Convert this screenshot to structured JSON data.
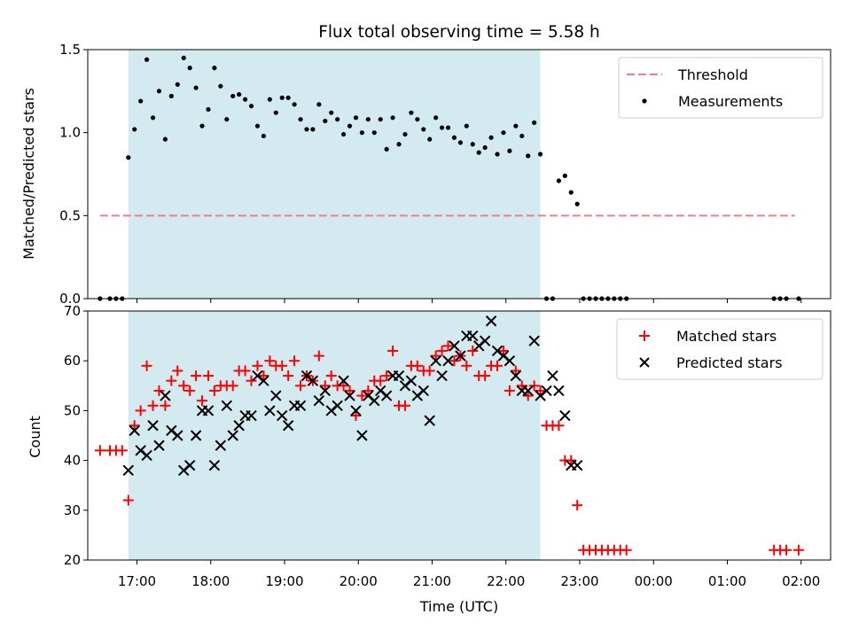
{
  "chart_data": {
    "title": "Flux total observing time = 5.58 h",
    "observing_window": {
      "start": "16:53",
      "end": "22:28",
      "color": "#d3eaf0"
    },
    "xlabel": "Time (UTC)",
    "xlim": [
      "16:20",
      "02:24"
    ],
    "x_tick_labels": [
      "17:00",
      "18:00",
      "19:00",
      "20:00",
      "21:00",
      "22:00",
      "23:00",
      "00:00",
      "01:00",
      "02:00"
    ],
    "panels": [
      {
        "type": "scatter",
        "ylabel": "Matched/Predicted stars",
        "ylim": [
          0,
          1.5
        ],
        "y_tick_labels": [
          "0.0",
          "0.5",
          "1.0",
          "1.5"
        ],
        "legend_position": "top-right",
        "threshold": {
          "name": "Threshold",
          "value": 0.5,
          "x_range": [
            "16:30",
            "01:55"
          ],
          "color": "#f08080",
          "style": "dashed"
        },
        "series": [
          {
            "name": "Measurements",
            "color": "#000000",
            "marker": "dot",
            "x": [
              "16:30",
              "16:38",
              "16:43",
              "16:48",
              "16:53",
              "16:58",
              "17:03",
              "17:08",
              "17:13",
              "17:18",
              "17:23",
              "17:28",
              "17:33",
              "17:38",
              "17:43",
              "17:48",
              "17:53",
              "17:58",
              "18:03",
              "18:08",
              "18:13",
              "18:18",
              "18:23",
              "18:28",
              "18:33",
              "18:38",
              "18:43",
              "18:48",
              "18:53",
              "18:58",
              "19:03",
              "19:08",
              "19:13",
              "19:18",
              "19:23",
              "19:28",
              "19:33",
              "19:38",
              "19:43",
              "19:48",
              "19:53",
              "19:58",
              "20:03",
              "20:08",
              "20:13",
              "20:18",
              "20:23",
              "20:28",
              "20:33",
              "20:38",
              "20:43",
              "20:48",
              "20:53",
              "20:58",
              "21:03",
              "21:08",
              "21:13",
              "21:18",
              "21:23",
              "21:28",
              "21:33",
              "21:38",
              "21:43",
              "21:48",
              "21:53",
              "21:58",
              "22:03",
              "22:08",
              "22:13",
              "22:18",
              "22:23",
              "22:28",
              "22:33",
              "22:38",
              "22:43",
              "22:48",
              "22:53",
              "22:58",
              "23:03",
              "23:08",
              "23:13",
              "23:18",
              "23:23",
              "23:28",
              "23:33",
              "23:38",
              "01:38",
              "01:43",
              "01:48",
              "01:58"
            ],
            "y": [
              0,
              0,
              0,
              0,
              0.85,
              1.02,
              1.19,
              1.44,
              1.09,
              1.25,
              0.96,
              1.22,
              1.29,
              1.45,
              1.39,
              1.27,
              1.04,
              1.14,
              1.39,
              1.28,
              1.08,
              1.22,
              1.23,
              1.2,
              1.16,
              1.04,
              0.98,
              1.2,
              1.12,
              1.21,
              1.21,
              1.17,
              1.08,
              1.02,
              1.02,
              1.17,
              1.07,
              1.12,
              1.08,
              0.99,
              1.04,
              1.09,
              1.0,
              1.08,
              1.0,
              1.08,
              0.9,
              1.09,
              0.93,
              0.99,
              1.12,
              1.08,
              1.02,
              0.96,
              1.09,
              1.03,
              1.03,
              0.97,
              0.94,
              1.04,
              0.93,
              0.88,
              0.91,
              0.97,
              0.87,
              1.0,
              0.89,
              1.04,
              0.98,
              0.86,
              1.06,
              0.87,
              0,
              0,
              0.71,
              0.74,
              0.64,
              0.57,
              0,
              0,
              0,
              0,
              0,
              0,
              0,
              0,
              0,
              0,
              0,
              0
            ]
          }
        ]
      },
      {
        "type": "scatter",
        "ylabel": "Count",
        "ylim": [
          20,
          70
        ],
        "y_tick_labels": [
          "20",
          "30",
          "40",
          "50",
          "60",
          "70"
        ],
        "legend_position": "top-right",
        "series": [
          {
            "name": "Matched stars",
            "color": "#ff0000",
            "marker": "plus",
            "x": [
              "16:30",
              "16:38",
              "16:43",
              "16:48",
              "16:53",
              "16:58",
              "17:03",
              "17:08",
              "17:13",
              "17:18",
              "17:23",
              "17:28",
              "17:33",
              "17:38",
              "17:43",
              "17:48",
              "17:53",
              "17:58",
              "18:03",
              "18:08",
              "18:13",
              "18:18",
              "18:23",
              "18:28",
              "18:33",
              "18:38",
              "18:43",
              "18:48",
              "18:53",
              "18:58",
              "19:03",
              "19:08",
              "19:13",
              "19:18",
              "19:23",
              "19:28",
              "19:33",
              "19:38",
              "19:43",
              "19:48",
              "19:53",
              "19:58",
              "20:03",
              "20:08",
              "20:13",
              "20:18",
              "20:23",
              "20:28",
              "20:33",
              "20:38",
              "20:43",
              "20:48",
              "20:53",
              "20:58",
              "21:03",
              "21:08",
              "21:13",
              "21:18",
              "21:23",
              "21:28",
              "21:33",
              "21:38",
              "21:43",
              "21:48",
              "21:53",
              "21:58",
              "22:03",
              "22:08",
              "22:13",
              "22:18",
              "22:23",
              "22:28",
              "22:33",
              "22:38",
              "22:43",
              "22:48",
              "22:53",
              "22:58",
              "23:03",
              "23:08",
              "23:13",
              "23:18",
              "23:23",
              "23:28",
              "23:33",
              "23:38",
              "01:38",
              "01:43",
              "01:48",
              "01:58"
            ],
            "y": [
              42,
              42,
              42,
              42,
              32,
              47,
              50,
              59,
              51,
              54,
              51,
              56,
              58,
              55,
              54,
              57,
              52,
              57,
              54,
              55,
              55,
              55,
              58,
              58,
              56,
              59,
              57,
              60,
              59,
              59,
              57,
              60,
              55,
              57,
              56,
              61,
              55,
              57,
              55,
              55,
              54,
              49,
              53,
              54,
              56,
              56,
              57,
              62,
              51,
              51,
              59,
              59,
              58,
              58,
              61,
              62,
              63,
              60,
              61,
              59,
              62,
              57,
              57,
              59,
              59,
              62,
              54,
              58,
              55,
              53,
              55,
              54,
              47,
              47,
              47,
              40,
              40,
              31,
              22,
              22,
              22,
              22,
              22,
              22,
              22,
              22,
              22,
              22,
              22,
              22
            ]
          },
          {
            "name": "Predicted stars",
            "color": "#000000",
            "marker": "x",
            "x": [
              "16:53",
              "16:58",
              "17:03",
              "17:08",
              "17:13",
              "17:18",
              "17:23",
              "17:28",
              "17:33",
              "17:38",
              "17:43",
              "17:48",
              "17:53",
              "17:58",
              "18:03",
              "18:08",
              "18:13",
              "18:18",
              "18:23",
              "18:28",
              "18:33",
              "18:38",
              "18:43",
              "18:48",
              "18:53",
              "18:58",
              "19:03",
              "19:08",
              "19:13",
              "19:18",
              "19:23",
              "19:28",
              "19:33",
              "19:38",
              "19:43",
              "19:48",
              "19:53",
              "19:58",
              "20:03",
              "20:08",
              "20:13",
              "20:18",
              "20:23",
              "20:28",
              "20:33",
              "20:38",
              "20:43",
              "20:48",
              "20:53",
              "20:58",
              "21:03",
              "21:08",
              "21:13",
              "21:18",
              "21:23",
              "21:28",
              "21:33",
              "21:38",
              "21:43",
              "21:48",
              "21:53",
              "21:58",
              "22:03",
              "22:08",
              "22:13",
              "22:18",
              "22:23",
              "22:28",
              "22:33",
              "22:38",
              "22:43",
              "22:48",
              "22:53",
              "22:58"
            ],
            "y": [
              38,
              46,
              42,
              41,
              47,
              43,
              53,
              46,
              45,
              38,
              39,
              45,
              50,
              50,
              39,
              43,
              51,
              45,
              47,
              49,
              49,
              57,
              56,
              50,
              53,
              49,
              47,
              51,
              51,
              57,
              56,
              52,
              54,
              50,
              51,
              56,
              53,
              50,
              45,
              53,
              52,
              54,
              53,
              57,
              57,
              55,
              56,
              53,
              54,
              48,
              60,
              57,
              60,
              63,
              61,
              65,
              65,
              63,
              64,
              68,
              62,
              61,
              60,
              57,
              54,
              54,
              64,
              53,
              54,
              57,
              54,
              49,
              39,
              39
            ]
          }
        ]
      }
    ]
  }
}
